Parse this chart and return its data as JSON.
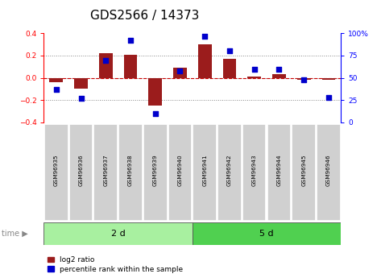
{
  "title": "GDS2566 / 14373",
  "samples": [
    "GSM96935",
    "GSM96936",
    "GSM96937",
    "GSM96938",
    "GSM96939",
    "GSM96940",
    "GSM96941",
    "GSM96942",
    "GSM96943",
    "GSM96944",
    "GSM96945",
    "GSM96946"
  ],
  "log2_ratio": [
    -0.04,
    -0.1,
    0.22,
    0.21,
    -0.25,
    0.09,
    0.3,
    0.17,
    0.01,
    0.03,
    -0.02,
    -0.02
  ],
  "percentile_rank": [
    37,
    27,
    70,
    92,
    10,
    58,
    97,
    80,
    60,
    60,
    48,
    28
  ],
  "group1_count": 6,
  "group2_count": 6,
  "group1_label": "2 d",
  "group2_label": "5 d",
  "time_label": "time",
  "legend_bar_label": "log2 ratio",
  "legend_dot_label": "percentile rank within the sample",
  "ylim": [
    -0.4,
    0.4
  ],
  "ylim_right": [
    0,
    100
  ],
  "yticks_left": [
    -0.4,
    -0.2,
    0.0,
    0.2,
    0.4
  ],
  "yticks_right": [
    0,
    25,
    50,
    75,
    100
  ],
  "bar_color": "#9B1C1C",
  "dot_color": "#0000CC",
  "group1_color": "#A8F0A0",
  "group2_color": "#50D050",
  "sample_box_color": "#D0D0D0",
  "hline_color": "#CC0000",
  "dotline_color": "#888888",
  "bg_color": "#FFFFFF",
  "title_fontsize": 11,
  "tick_fontsize": 6.5,
  "label_fontsize": 7.5
}
